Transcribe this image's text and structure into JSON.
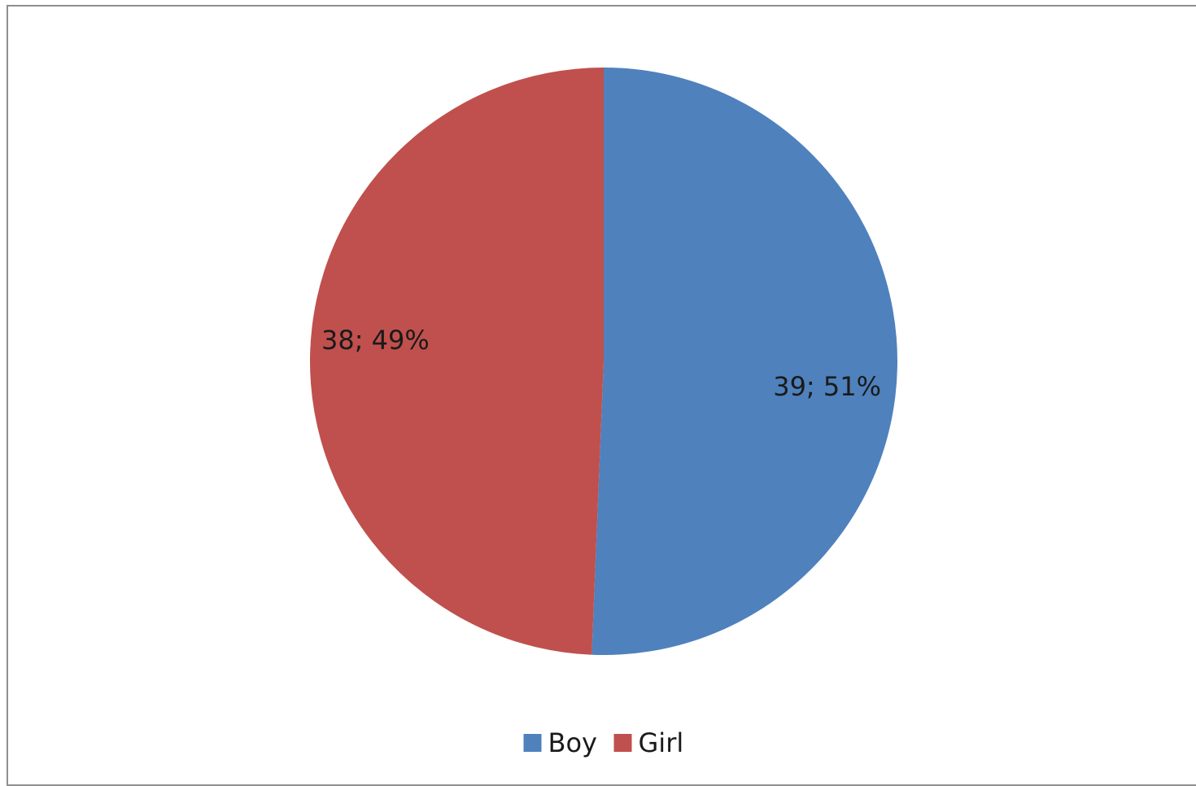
{
  "chart_data": {
    "type": "pie",
    "title": "",
    "legend_position": "bottom",
    "start_direction": "top",
    "direction": "clockwise",
    "slices": [
      {
        "name": "Boy",
        "value": 39,
        "percent": 51,
        "label": "39; 51%",
        "color": "#4f81bd"
      },
      {
        "name": "Girl",
        "value": 38,
        "percent": 49,
        "label": "38; 49%",
        "color": "#c0504d"
      }
    ]
  }
}
